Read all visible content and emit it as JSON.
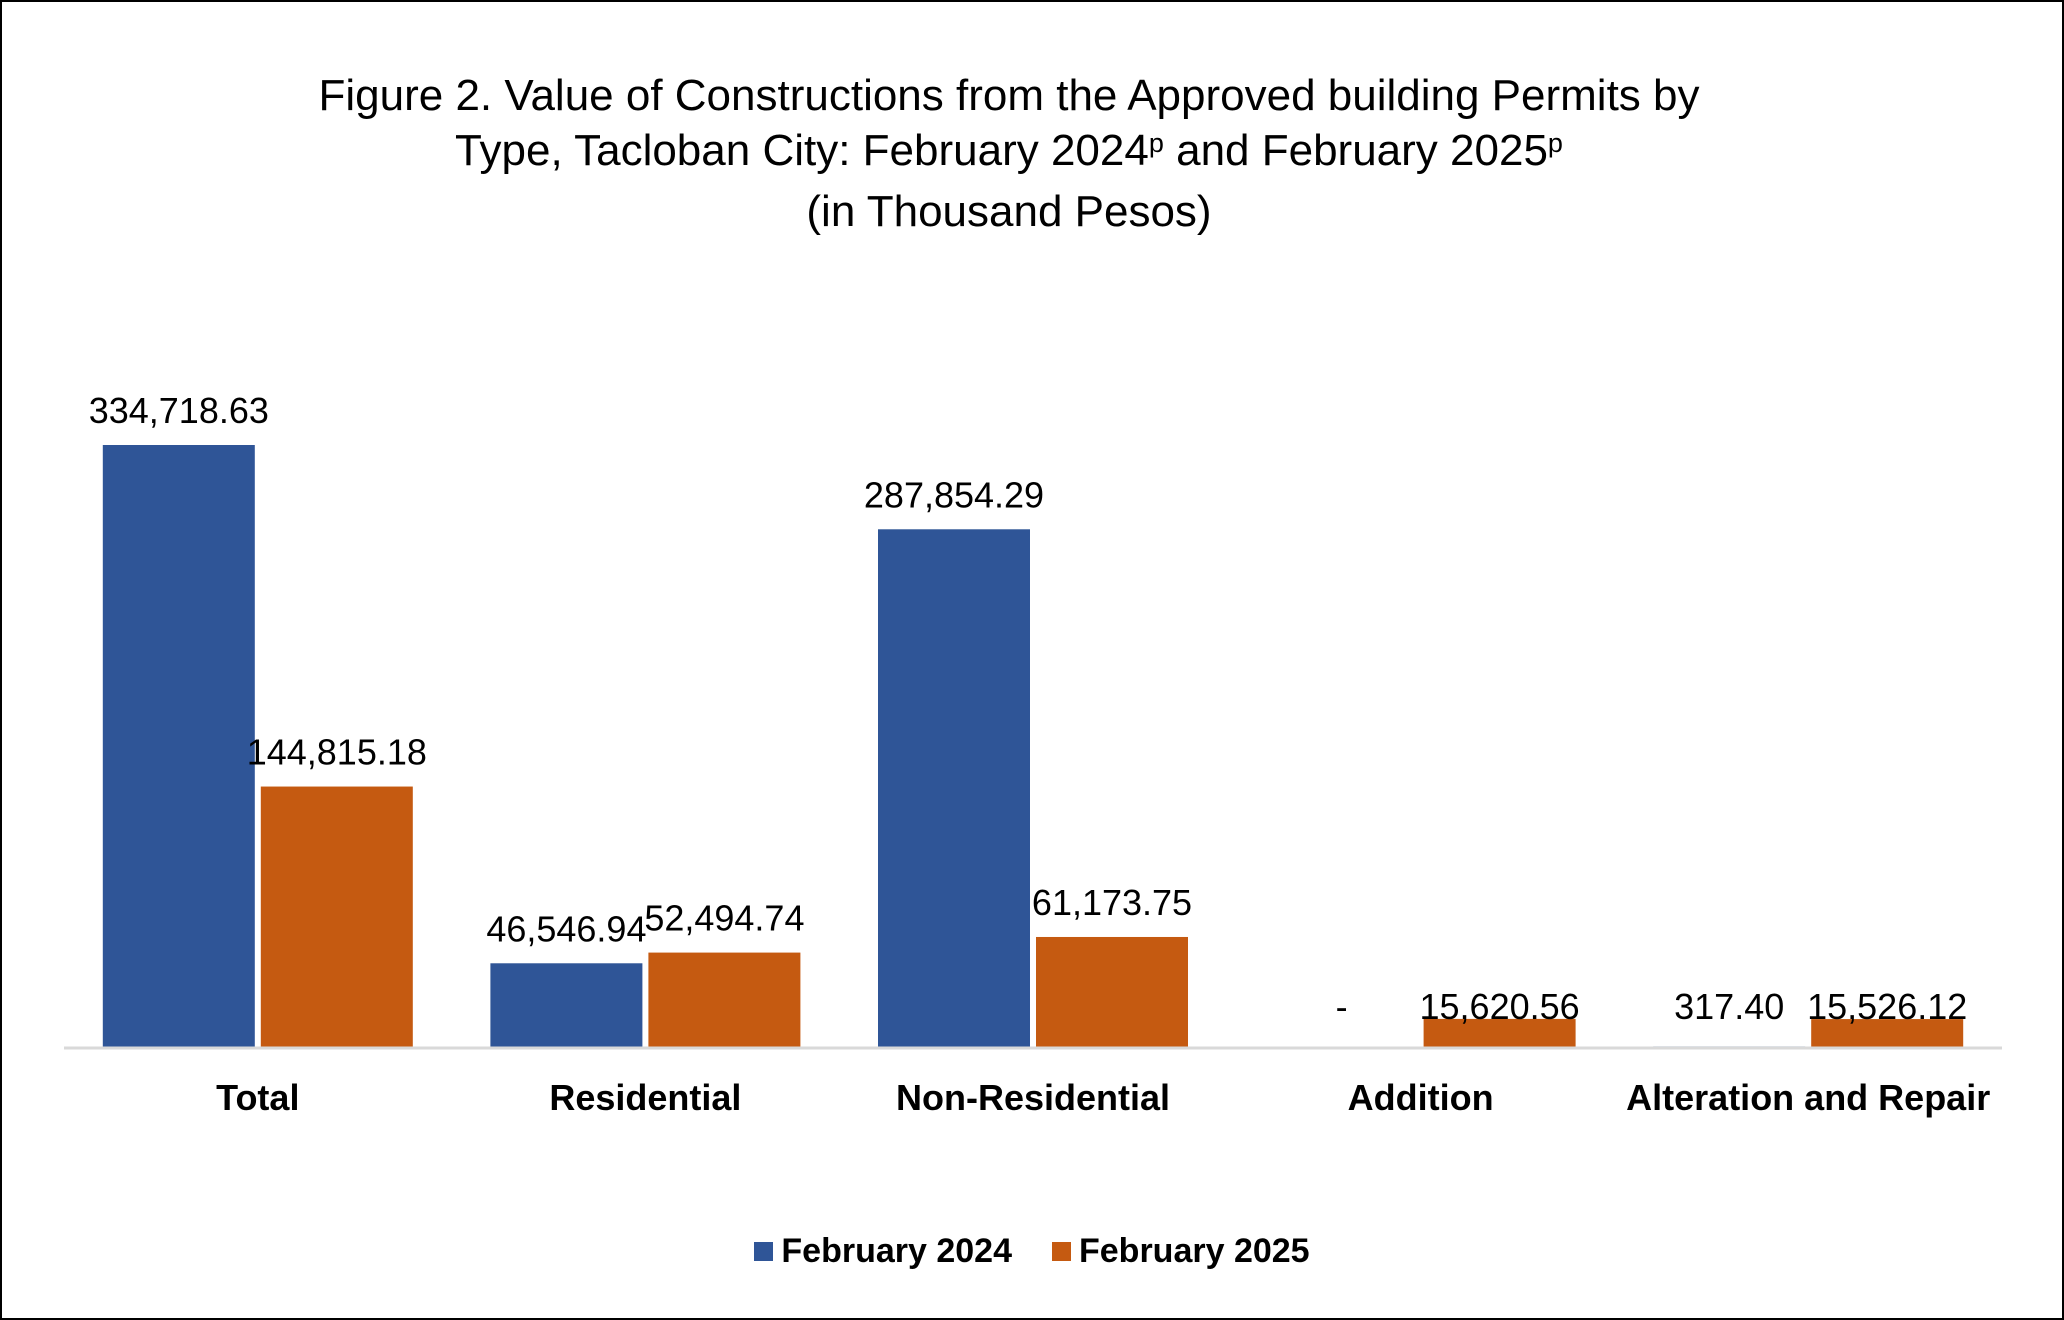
{
  "title": {
    "line1": "Figure 2. Value of Constructions from the Approved building Permits by",
    "line2_a": "Type, Tacloban City: February 2024",
    "line2_sup1": "p",
    "line2_b": " and February 2025",
    "line2_sup2": "p",
    "line3": "(in Thousand Pesos)"
  },
  "chart_data": {
    "type": "bar",
    "categories": [
      "Total",
      "Residential",
      "Non-Residential",
      "Addition",
      "Alteration and Repair"
    ],
    "series": [
      {
        "name": "February 2024",
        "color": "#2f5597",
        "values": [
          334718.63,
          46546.94,
          287854.29,
          0,
          317.4
        ],
        "labels": [
          "334,718.63",
          "46,546.94",
          "287,854.29",
          "-",
          "317.40"
        ]
      },
      {
        "name": "February 2025",
        "color": "#c55a11",
        "values": [
          144815.18,
          52494.74,
          61173.75,
          15620.56,
          15526.12
        ],
        "labels": [
          "144,815.18",
          "52,494.74",
          "61,173.75",
          "15,620.56",
          "15,526.12"
        ]
      }
    ],
    "ylim": [
      0,
      400000
    ],
    "grid": false,
    "legend_position": "bottom"
  }
}
